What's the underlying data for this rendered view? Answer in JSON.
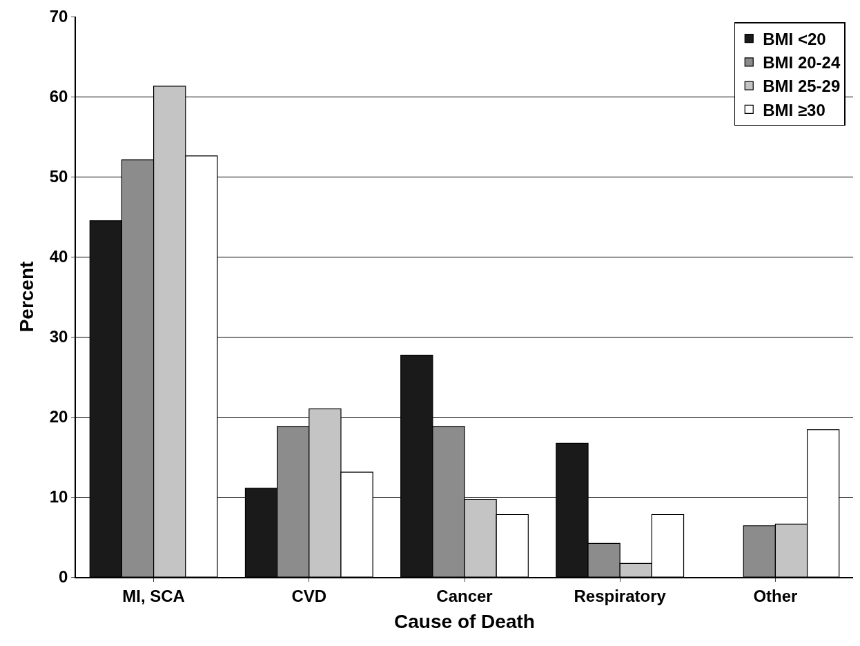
{
  "chart_data": {
    "type": "bar",
    "xlabel": "Cause of Death",
    "ylabel": "Percent",
    "categories": [
      "MI, SCA",
      "CVD",
      "Cancer",
      "Respiratory",
      "Other"
    ],
    "series": [
      {
        "name": "BMI <20",
        "color": "#1a1a1a",
        "values": [
          44.5,
          11.1,
          27.7,
          16.7,
          null
        ]
      },
      {
        "name": "BMI 20-24",
        "color": "#8c8c8c",
        "values": [
          52.1,
          18.8,
          18.8,
          4.2,
          6.4
        ]
      },
      {
        "name": "BMI 25-29",
        "color": "#c4c4c4",
        "values": [
          61.3,
          21.0,
          9.7,
          1.7,
          6.6
        ]
      },
      {
        "name": "BMI ≥30",
        "color": "#ffffff",
        "values": [
          52.6,
          13.1,
          7.8,
          7.8,
          18.4
        ]
      }
    ],
    "ylim": [
      0,
      70
    ],
    "yticks": [
      0,
      10,
      20,
      30,
      40,
      50,
      60,
      70
    ],
    "grid": "y",
    "legend": "top right"
  }
}
